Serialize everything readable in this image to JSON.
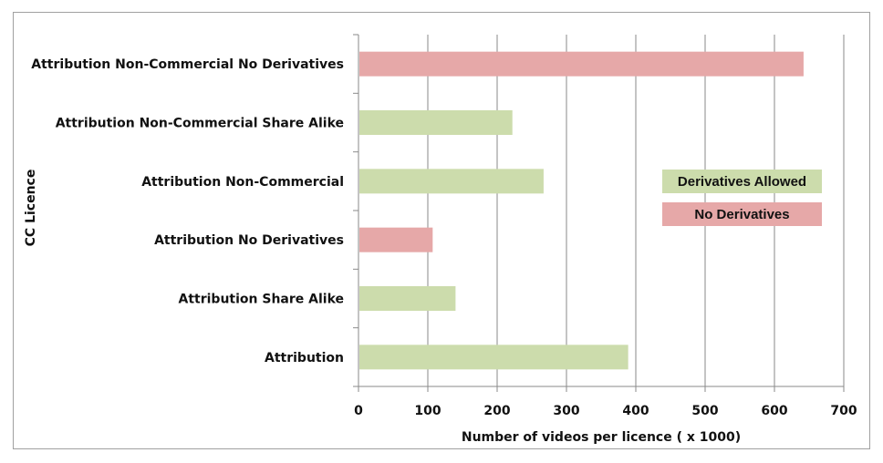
{
  "chart_data": {
    "type": "bar",
    "orientation": "horizontal",
    "categories": [
      "Attribution Non-Commercial No Derivatives",
      "Attribution Non-Commercial Share Alike",
      "Attribution Non-Commercial",
      "Attribution No Derivatives",
      "Attribution Share Alike",
      "Attribution"
    ],
    "values": [
      642,
      222,
      267,
      107,
      140,
      389
    ],
    "groups": [
      "No Derivatives",
      "Derivatives Allowed",
      "Derivatives Allowed",
      "No Derivatives",
      "Derivatives Allowed",
      "Derivatives Allowed"
    ],
    "xlabel": "Number of videos per licence ( x 1000)",
    "ylabel": "CC Licence",
    "xlim": [
      0,
      700
    ],
    "xticks": [
      0,
      100,
      200,
      300,
      400,
      500,
      600,
      700
    ],
    "grid": "vertical",
    "legend": {
      "placement": "right",
      "entries": [
        {
          "label": "Derivatives Allowed",
          "color": "#ccdcac"
        },
        {
          "label": "No Derivatives",
          "color": "#e6a8a8"
        }
      ]
    },
    "colors": {
      "Derivatives Allowed": "#ccdcac",
      "No Derivatives": "#e6a8a8"
    }
  }
}
